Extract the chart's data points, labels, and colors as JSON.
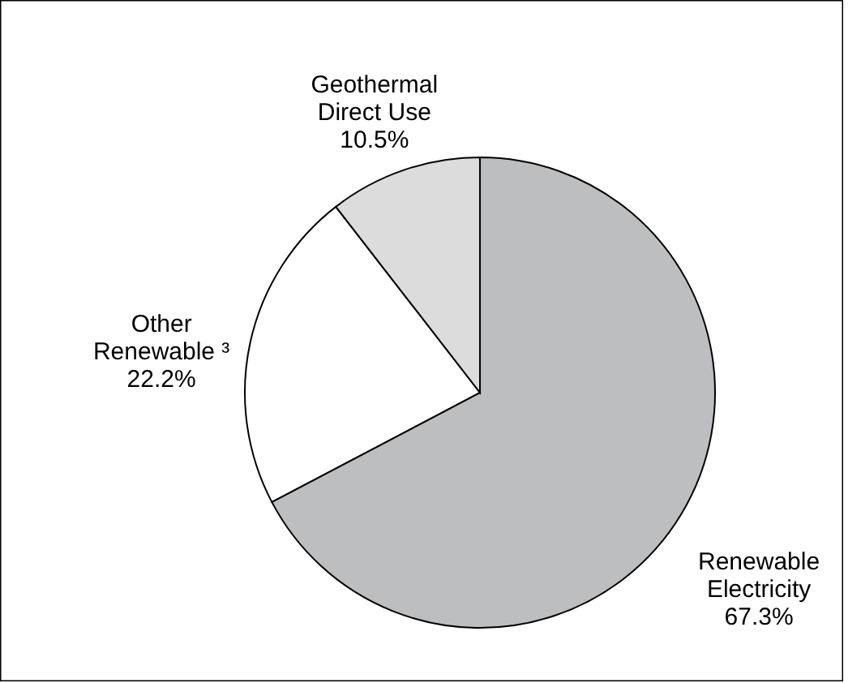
{
  "chart_data": {
    "type": "pie",
    "categories": [
      "Renewable\nElectricity",
      "Other\nRenewable ³",
      "Geothermal\nDirect Use"
    ],
    "values": [
      67.3,
      22.2,
      10.5
    ],
    "colors": [
      "#bdbec0",
      "#ffffff",
      "#dcdcdc"
    ],
    "value_labels": [
      "67.3%",
      "22.2%",
      "10.5%"
    ],
    "legend": false
  }
}
